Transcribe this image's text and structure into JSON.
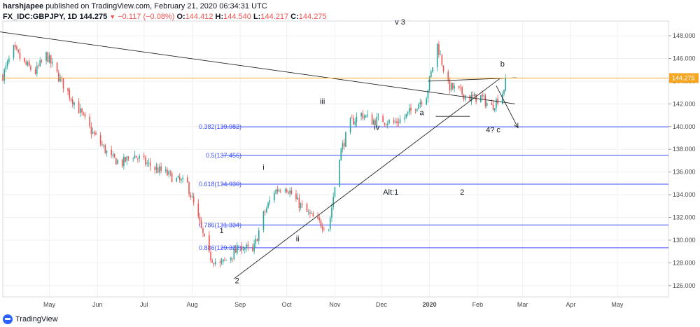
{
  "header": {
    "publisher_user": "harshjapee",
    "publisher_rest": " published on TradingView.com, February 21, 2020 06:34:31 UTC",
    "symbol": "FX_IDC:GBPJPY, 1D",
    "last": "144.275",
    "change": "−0.117 (−0.08%)",
    "open_label": "O:",
    "open": "144.412",
    "high_label": "H:",
    "high": "144.540",
    "low_label": "L:",
    "low": "144.217",
    "close_label": "C:",
    "close": "144.275"
  },
  "footer": {
    "brand": "TradingView"
  },
  "colors": {
    "up": "#26a69a",
    "down": "#ef5350",
    "fib": "#3f51ff",
    "price_line": "#f5a623",
    "grid": "#eef0f3",
    "axis_text": "#4a4a4a"
  },
  "chart_data": {
    "type": "candlestick",
    "title": "FX_IDC:GBPJPY, 1D",
    "y_axis": {
      "ylim": [
        125.0,
        149.3
      ],
      "ticks": [
        "126.000",
        "128.000",
        "130.000",
        "132.000",
        "134.000",
        "136.000",
        "138.000",
        "140.000",
        "142.000",
        "144.000",
        "146.000",
        "148.000"
      ],
      "position": "right"
    },
    "x_axis": {
      "labels": [
        "May",
        "Jun",
        "Jul",
        "Aug",
        "Sep",
        "Oct",
        "Nov",
        "Dec",
        "2020",
        "Feb",
        "Mar",
        "Apr",
        "May"
      ],
      "label_dates": [
        "2019-05-01",
        "2019-06-01",
        "2019-07-01",
        "2019-08-01",
        "2019-09-01",
        "2019-10-01",
        "2019-11-01",
        "2019-12-01",
        "2020-01-01",
        "2020-02-01",
        "2020-03-01",
        "2020-04-01",
        "2020-05-01"
      ],
      "range": [
        "2019-04-01",
        "2020-06-03"
      ]
    },
    "last_price": {
      "value": 144.275,
      "label": "144.275"
    },
    "price_path": [
      [
        "2019-04-01",
        144.5
      ],
      [
        "2019-04-08",
        146.8
      ],
      [
        "2019-04-15",
        145.5
      ],
      [
        "2019-04-22",
        144.8
      ],
      [
        "2019-04-29",
        146.3
      ],
      [
        "2019-05-06",
        144.6
      ],
      [
        "2019-05-13",
        143.0
      ],
      [
        "2019-05-20",
        141.5
      ],
      [
        "2019-05-27",
        139.8
      ],
      [
        "2019-06-03",
        138.5
      ],
      [
        "2019-06-10",
        137.2
      ],
      [
        "2019-06-17",
        136.8
      ],
      [
        "2019-06-24",
        137.5
      ],
      [
        "2019-07-01",
        136.9
      ],
      [
        "2019-07-08",
        136.3
      ],
      [
        "2019-07-15",
        135.9
      ],
      [
        "2019-07-22",
        135.3
      ],
      [
        "2019-07-29",
        134.9
      ],
      [
        "2019-08-05",
        131.8
      ],
      [
        "2019-08-12",
        128.6
      ],
      [
        "2019-08-19",
        127.8
      ],
      [
        "2019-08-26",
        128.6
      ],
      [
        "2019-09-02",
        129.5
      ],
      [
        "2019-09-09",
        128.9
      ],
      [
        "2019-09-16",
        132.2
      ],
      [
        "2019-09-23",
        134.3
      ],
      [
        "2019-09-30",
        134.8
      ],
      [
        "2019-10-07",
        133.5
      ],
      [
        "2019-10-14",
        132.4
      ],
      [
        "2019-10-21",
        131.6
      ],
      [
        "2019-10-28",
        131.1
      ],
      [
        "2019-11-04",
        137.5
      ],
      [
        "2019-11-11",
        140.3
      ],
      [
        "2019-11-18",
        141.1
      ],
      [
        "2019-11-25",
        140.5
      ],
      [
        "2019-12-02",
        140.6
      ],
      [
        "2019-12-09",
        140.3
      ],
      [
        "2019-12-16",
        140.8
      ],
      [
        "2019-12-23",
        141.8
      ],
      [
        "2019-12-30",
        142.8
      ],
      [
        "2020-01-06",
        147.2
      ],
      [
        "2020-01-13",
        143.6
      ],
      [
        "2020-01-20",
        143.1
      ],
      [
        "2020-01-27",
        142.5
      ],
      [
        "2020-02-03",
        142.6
      ],
      [
        "2020-02-10",
        141.7
      ],
      [
        "2020-02-17",
        143.0
      ],
      [
        "2020-02-20",
        144.3
      ]
    ],
    "fib_levels": [
      {
        "label": "0.382(139.982)",
        "value": 139.982
      },
      {
        "label": "0.5(137.456)",
        "value": 137.456
      },
      {
        "label": "0.618(134.930)",
        "value": 134.93
      },
      {
        "label": "0.786(131.334)",
        "value": 131.334
      },
      {
        "label": "0.886(129.322)",
        "value": 129.322
      }
    ],
    "wave_labels": [
      {
        "text": "v 3",
        "date": "2019-12-13",
        "price": 149.0
      },
      {
        "text": "iii",
        "date": "2019-10-24",
        "price": 142.0
      },
      {
        "text": "iv",
        "date": "2019-11-28",
        "price": 139.7
      },
      {
        "text": "i",
        "date": "2019-09-16",
        "price": 136.2
      },
      {
        "text": "ii",
        "date": "2019-10-08",
        "price": 129.9
      },
      {
        "text": "1",
        "date": "2019-08-20",
        "price": 130.6
      },
      {
        "text": "2",
        "date": "2019-08-30",
        "price": 126.2
      },
      {
        "text": "a",
        "date": "2019-12-27",
        "price": 141.0
      },
      {
        "text": "b",
        "date": "2020-02-17",
        "price": 145.3
      },
      {
        "text": "4? c",
        "date": "2020-02-11",
        "price": 139.5
      },
      {
        "text": "Alt:1",
        "date": "2019-12-07",
        "price": 134.0
      },
      {
        "text": "2",
        "date": "2020-01-22",
        "price": 134.0
      }
    ],
    "trendlines": [
      {
        "from": [
          "2019-03-27",
          148.4
        ],
        "to": [
          "2020-02-25",
          142.0
        ]
      },
      {
        "from": [
          "2019-08-28",
          126.6
        ],
        "to": [
          "2020-02-15",
          144.2
        ]
      },
      {
        "from": [
          "2019-12-31",
          144.0
        ],
        "to": [
          "2020-02-26",
          144.3
        ]
      },
      {
        "from": [
          "2020-01-05",
          140.9
        ],
        "to": [
          "2020-01-27",
          140.9
        ]
      }
    ],
    "arrow": {
      "from": [
        "2020-02-13",
        143.6
      ],
      "to": [
        "2020-02-27",
        139.9
      ]
    },
    "grid": true
  }
}
